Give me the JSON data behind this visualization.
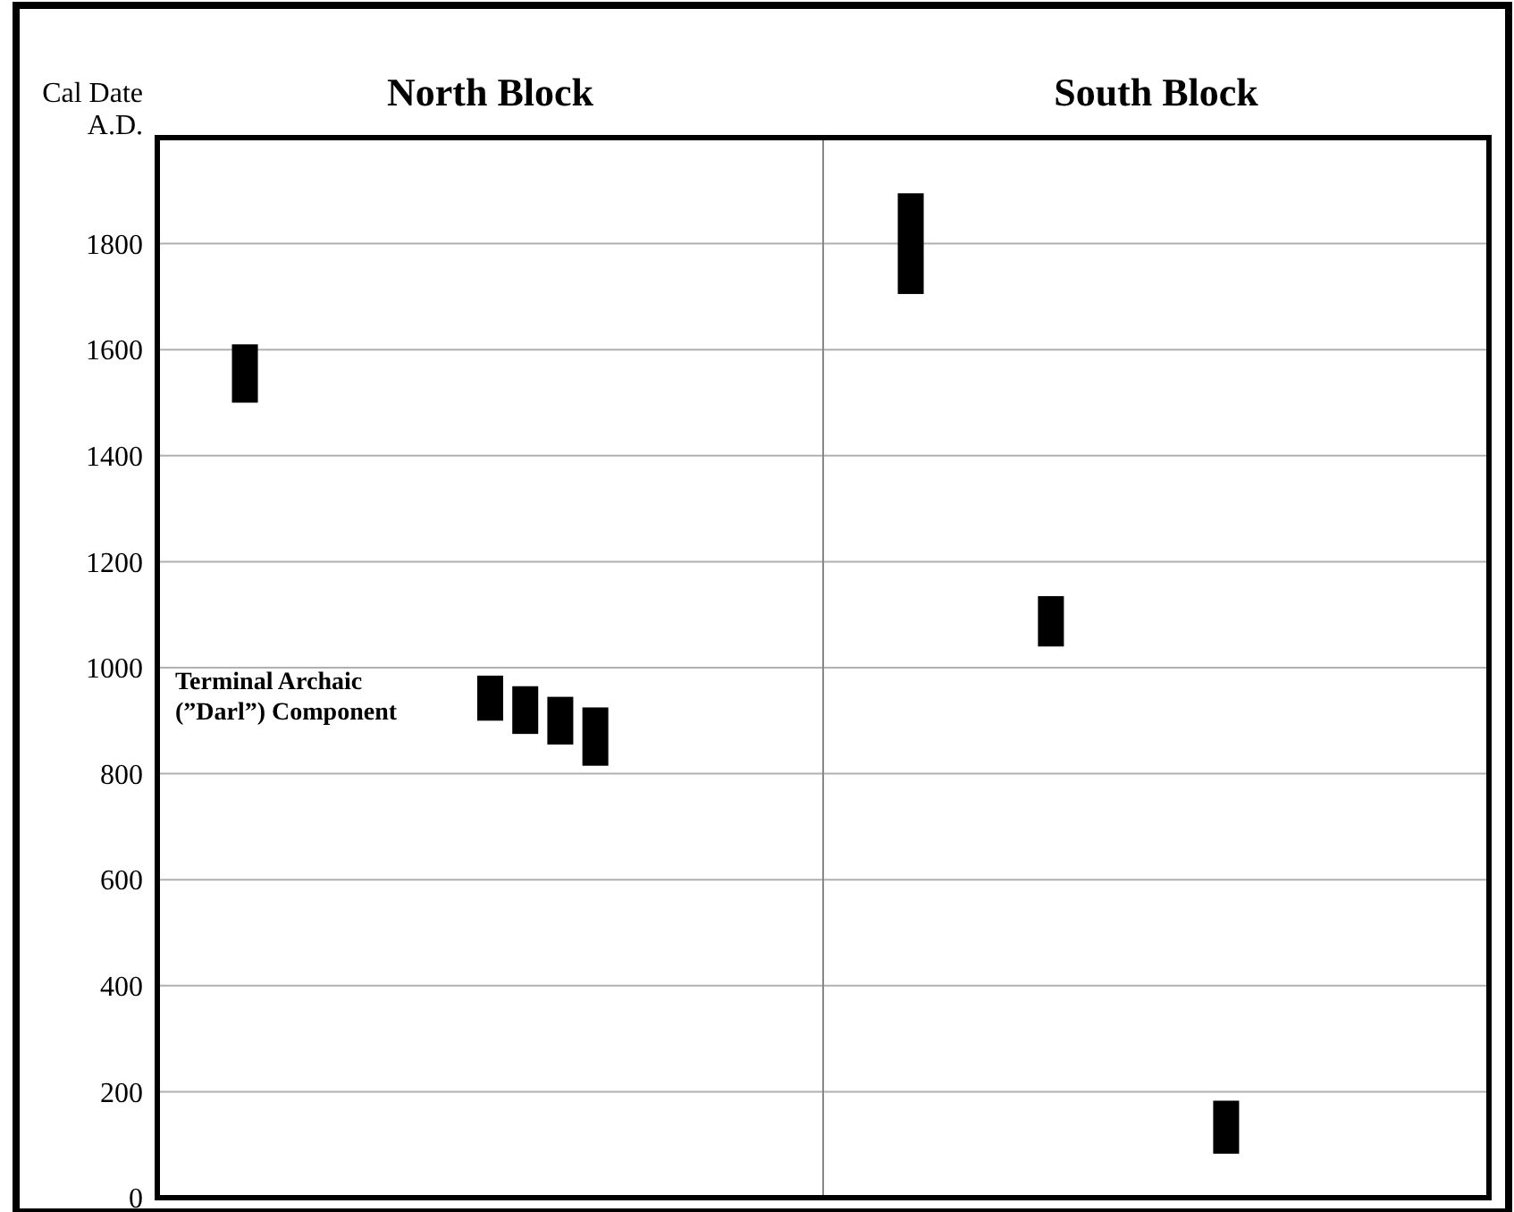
{
  "chart_data": {
    "type": "bar",
    "ylabel": "Cal Date\nA.D.",
    "categories": [
      null,
      null,
      null,
      null,
      null,
      null,
      null,
      null,
      null,
      null,
      null,
      null,
      null,
      null,
      null,
      null,
      null,
      null,
      null,
      null,
      null,
      null,
      null,
      null,
      null,
      null,
      null,
      null,
      null,
      null,
      null,
      null,
      null,
      null,
      null,
      null,
      null,
      null
    ],
    "values": [
      null,
      null,
      110,
      null,
      null,
      null,
      null,
      null,
      null,
      85,
      90,
      90,
      110,
      null,
      null,
      null,
      null,
      null,
      null,
      null,
      null,
      190,
      null,
      null,
      null,
      95,
      null,
      null,
      null,
      null,
      100,
      null,
      null,
      null,
      null,
      null,
      null,
      null
    ],
    "base": [
      null,
      null,
      1500,
      null,
      null,
      null,
      null,
      null,
      null,
      900,
      875,
      855,
      815,
      null,
      null,
      null,
      null,
      null,
      null,
      null,
      null,
      1705,
      null,
      null,
      null,
      1040,
      null,
      null,
      null,
      null,
      83,
      null,
      null,
      null,
      null,
      null,
      null,
      null
    ],
    "color": "#000000",
    "ylim": [
      0,
      2000
    ],
    "yticks": [
      0,
      200,
      400,
      600,
      800,
      1000,
      1200,
      1400,
      1600,
      1800
    ],
    "grid": "y",
    "tick_labels": "y",
    "annotations": [
      "North Block",
      "South Block",
      "Terminal Archaic\n(”Darl”) Component"
    ]
  }
}
